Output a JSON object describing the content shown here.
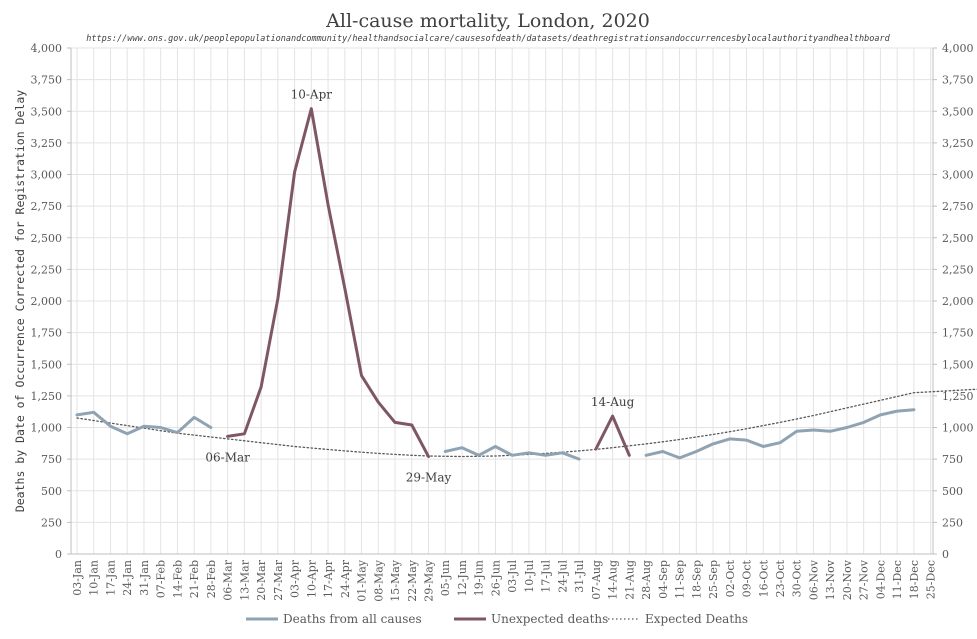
{
  "chart_data": {
    "type": "line",
    "title": "All-cause mortality, London, 2020",
    "subtitle": "https://www.ons.gov.uk/peoplepopulationandcommunity/healthandsocialcare/causesofdeath/datasets/deathregistrationsandoccurrencesbylocalauthorityandhealthboard",
    "ylabel": "Deaths by Date of Occurrence Corrected for Registration Delay",
    "xlabel": "",
    "ylim": [
      0,
      4000
    ],
    "yticks": [
      0,
      250,
      500,
      750,
      1000,
      1250,
      1500,
      1750,
      2000,
      2250,
      2500,
      2750,
      3000,
      3250,
      3500,
      3750,
      4000
    ],
    "ytick_labels": [
      "0",
      "250",
      "500",
      "750",
      "1,000",
      "1,250",
      "1,500",
      "1,750",
      "2,000",
      "2,250",
      "2,500",
      "2,750",
      "3,000",
      "3,250",
      "3,500",
      "3,750",
      "4,000"
    ],
    "categories": [
      "03-Jan",
      "10-Jan",
      "17-Jan",
      "24-Jan",
      "31-Jan",
      "07-Feb",
      "14-Feb",
      "21-Feb",
      "28-Feb",
      "06-Mar",
      "13-Mar",
      "20-Mar",
      "27-Mar",
      "03-Apr",
      "10-Apr",
      "17-Apr",
      "24-Apr",
      "01-May",
      "08-May",
      "15-May",
      "22-May",
      "29-May",
      "05-Jun",
      "12-Jun",
      "19-Jun",
      "26-Jun",
      "03-Jul",
      "10-Jul",
      "17-Jul",
      "24-Jul",
      "31-Jul",
      "07-Aug",
      "14-Aug",
      "21-Aug",
      "28-Aug",
      "04-Sep",
      "11-Sep",
      "18-Sep",
      "25-Sep",
      "02-Oct",
      "09-Oct",
      "16-Oct",
      "23-Oct",
      "30-Oct",
      "06-Nov",
      "13-Nov",
      "20-Nov",
      "27-Nov",
      "04-Dec",
      "11-Dec",
      "18-Dec",
      "25-Dec"
    ],
    "series": [
      {
        "name": "Deaths from all causes",
        "color": "#8FA3B3",
        "values": [
          1100,
          1120,
          1010,
          950,
          1010,
          1000,
          960,
          1080,
          1000,
          null,
          null,
          null,
          null,
          null,
          null,
          null,
          null,
          null,
          null,
          null,
          null,
          null,
          810,
          840,
          780,
          850,
          780,
          800,
          780,
          800,
          750,
          null,
          null,
          null,
          780,
          810,
          760,
          810,
          870,
          910,
          900,
          850,
          880,
          970,
          980,
          970,
          1000,
          1040,
          1100,
          1130,
          1140,
          null
        ]
      },
      {
        "name": "Unexpected deaths",
        "color": "#7E5766",
        "values": [
          null,
          null,
          null,
          null,
          null,
          null,
          null,
          null,
          null,
          930,
          950,
          1320,
          2020,
          3020,
          3520,
          2760,
          2100,
          1410,
          1200,
          1040,
          1020,
          770,
          null,
          null,
          null,
          null,
          null,
          null,
          null,
          null,
          null,
          830,
          1090,
          780,
          null,
          null,
          null,
          null,
          null,
          null,
          null,
          null,
          null,
          null,
          null,
          null,
          null,
          null,
          null,
          null,
          null,
          null
        ]
      },
      {
        "name": "Expected Deaths",
        "color": "#595959",
        "style": "dotted",
        "values": [
          1075,
          1055,
          1035,
          1015,
          995,
          975,
          955,
          940,
          925,
          910,
          895,
          880,
          865,
          850,
          838,
          826,
          815,
          805,
          795,
          787,
          780,
          775,
          772,
          771,
          772,
          775,
          780,
          787,
          795,
          805,
          815,
          827,
          840,
          855,
          870,
          887,
          905,
          925,
          945,
          967,
          990,
          1015,
          1040,
          1067,
          1095,
          1125,
          1155,
          1185,
          1215,
          1245,
          1275,
          1305
        ]
      }
    ],
    "annotations": [
      {
        "label": "10-Apr",
        "category": "10-Apr",
        "value": 3520,
        "position": "above"
      },
      {
        "label": "06-Mar",
        "category": "06-Mar",
        "value": 930,
        "position": "below"
      },
      {
        "label": "29-May",
        "category": "29-May",
        "value": 770,
        "position": "below"
      },
      {
        "label": "14-Aug",
        "category": "14-Aug",
        "value": 1090,
        "position": "above"
      }
    ],
    "legend": {
      "position": "bottom",
      "entries": [
        "Deaths from all causes",
        "Unexpected deaths",
        "Expected Deaths"
      ]
    },
    "grid": true,
    "right_axis_mirror": true
  }
}
